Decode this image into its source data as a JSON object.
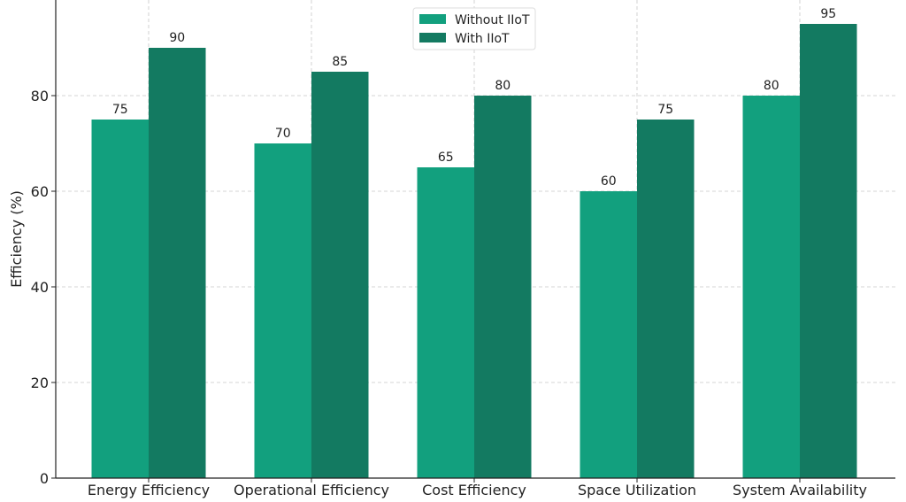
{
  "chart_data": {
    "type": "bar",
    "categories": [
      "Energy Efficiency",
      "Operational Efficiency",
      "Cost Efficiency",
      "Space Utilization",
      "System Availability"
    ],
    "series": [
      {
        "name": "Without IIoT",
        "values": [
          75,
          70,
          65,
          60,
          80
        ],
        "color": "#12a07e"
      },
      {
        "name": "With IIoT",
        "values": [
          90,
          85,
          80,
          75,
          95
        ],
        "color": "#137a61"
      }
    ],
    "title": "",
    "xlabel": "",
    "ylabel": "Efficiency (%)",
    "ylim": [
      0,
      100
    ],
    "yticks": [
      0,
      20,
      40,
      60,
      80
    ],
    "grid": true,
    "legend": "top-center",
    "data_labels": true
  }
}
